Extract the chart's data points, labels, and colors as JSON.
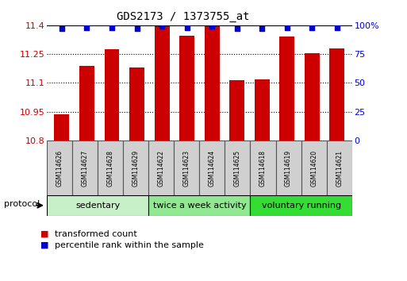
{
  "title": "GDS2173 / 1373755_at",
  "samples": [
    "GSM114626",
    "GSM114627",
    "GSM114628",
    "GSM114629",
    "GSM114622",
    "GSM114623",
    "GSM114624",
    "GSM114625",
    "GSM114618",
    "GSM114619",
    "GSM114620",
    "GSM114621"
  ],
  "bar_values": [
    10.935,
    11.19,
    11.275,
    11.18,
    11.395,
    11.345,
    11.395,
    11.115,
    11.12,
    11.34,
    11.255,
    11.28
  ],
  "percentile_values": [
    97,
    98,
    98,
    97,
    99,
    98,
    99,
    97,
    97,
    98,
    98,
    98
  ],
  "bar_color": "#cc0000",
  "dot_color": "#0000cc",
  "ymin": 10.8,
  "ymax": 11.4,
  "yticks": [
    10.8,
    10.95,
    11.1,
    11.25,
    11.4
  ],
  "ytick_labels": [
    "10.8",
    "10.95",
    "11.1",
    "11.25",
    "11.4"
  ],
  "y2min": 0,
  "y2max": 100,
  "y2ticks": [
    0,
    25,
    50,
    75,
    100
  ],
  "y2tick_labels": [
    "0",
    "25",
    "50",
    "75",
    "100%"
  ],
  "grid_color": "#000000",
  "groups": [
    {
      "label": "sedentary",
      "start": 0,
      "end": 4,
      "color": "#c8f0c8"
    },
    {
      "label": "twice a week activity",
      "start": 4,
      "end": 8,
      "color": "#90e890"
    },
    {
      "label": "voluntary running",
      "start": 8,
      "end": 12,
      "color": "#33dd33"
    }
  ],
  "protocol_label": "protocol",
  "legend_bar_label": "transformed count",
  "legend_dot_label": "percentile rank within the sample",
  "background_color": "#ffffff",
  "plot_bg_color": "#ffffff",
  "sample_box_color": "#d0d0d0"
}
